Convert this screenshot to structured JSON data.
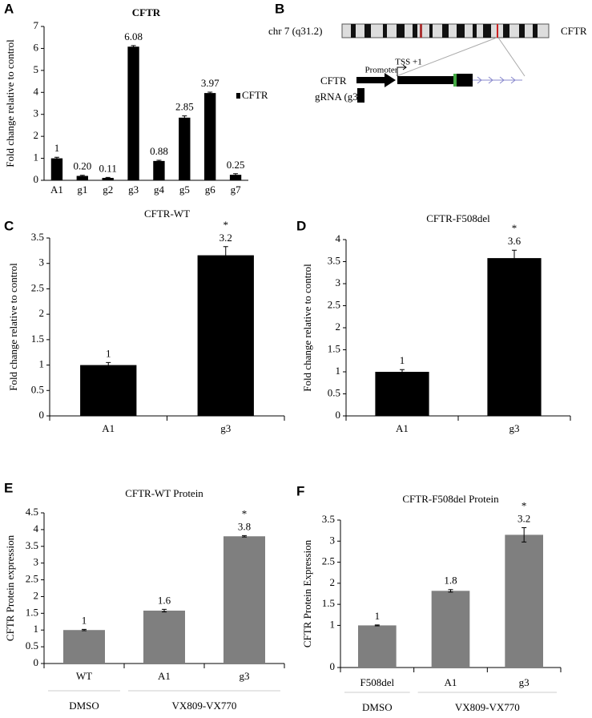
{
  "chart_data": [
    {
      "type": "bar",
      "panel": "A",
      "title": "CFTR",
      "ylabel": "Fold change relative to control",
      "categories": [
        "A1",
        "g1",
        "g2",
        "g3",
        "g4",
        "g5",
        "g6",
        "g7"
      ],
      "series": [
        {
          "name": "CFTR",
          "color": "#000000",
          "values": [
            1,
            0.2,
            0.11,
            6.08,
            0.88,
            2.85,
            3.97,
            0.25
          ],
          "value_labels": [
            "1",
            "0.20",
            "0.11",
            "6.08",
            "0.88",
            "2.85",
            "3.97",
            "0.25"
          ],
          "errors": [
            0.05,
            0.03,
            0.02,
            0.05,
            0.03,
            0.08,
            0.04,
            0.05
          ]
        }
      ],
      "ylim": [
        0,
        7
      ],
      "yticks": [
        0,
        1,
        2,
        3,
        4,
        5,
        6,
        7
      ],
      "legend": "right"
    },
    {
      "type": "bar",
      "panel": "C",
      "title": "CFTR-WT",
      "ylabel": "Fold change relative to control",
      "categories": [
        "A1",
        "g3"
      ],
      "series": [
        {
          "color": "#000000",
          "values": [
            1,
            3.16
          ],
          "value_labels": [
            "1",
            "3.2"
          ],
          "errors": [
            0.05,
            0.17
          ]
        }
      ],
      "annotations": [
        {
          "text": "*",
          "x": "g3"
        }
      ],
      "ylim": [
        0,
        3.5
      ],
      "yticks": [
        0,
        0.5,
        1,
        1.5,
        2,
        2.5,
        3,
        3.5
      ]
    },
    {
      "type": "bar",
      "panel": "D",
      "title": "CFTR-F508del",
      "ylabel": "Fold change relative to control",
      "categories": [
        "A1",
        "g3"
      ],
      "series": [
        {
          "color": "#000000",
          "values": [
            1,
            3.58
          ],
          "value_labels": [
            "1",
            "3.6"
          ],
          "errors": [
            0.05,
            0.18
          ]
        }
      ],
      "annotations": [
        {
          "text": "*",
          "x": "g3"
        }
      ],
      "ylim": [
        0,
        4
      ],
      "yticks": [
        0,
        0.5,
        1,
        1.5,
        2,
        2.5,
        3,
        3.5,
        4
      ]
    },
    {
      "type": "bar",
      "panel": "E",
      "title": "CFTR-WT Protein",
      "ylabel": "CFTR Protein expression",
      "categories": [
        "WT",
        "A1",
        "g3"
      ],
      "series": [
        {
          "color": "#7f7f7f",
          "values": [
            1,
            1.58,
            3.8
          ],
          "value_labels": [
            "1",
            "1.6",
            "3.8"
          ],
          "errors": [
            0.02,
            0.04,
            0.02
          ]
        }
      ],
      "annotations": [
        {
          "text": "*",
          "x": "g3"
        }
      ],
      "groups": [
        {
          "label": "DMSO",
          "categories": [
            "WT"
          ]
        },
        {
          "label": "VX809-VX770",
          "categories": [
            "A1",
            "g3"
          ]
        }
      ],
      "ylim": [
        0,
        4.5
      ],
      "yticks": [
        0,
        0.5,
        1,
        1.5,
        2,
        2.5,
        3,
        3.5,
        4,
        4.5
      ]
    },
    {
      "type": "bar",
      "panel": "F",
      "title": "CFTR-F508del Protein",
      "ylabel": "CFTR Protein Expression",
      "categories": [
        "F508del",
        "A1",
        "g3"
      ],
      "series": [
        {
          "color": "#7f7f7f",
          "values": [
            1,
            1.82,
            3.15
          ],
          "value_labels": [
            "1",
            "1.8",
            "3.2"
          ],
          "errors": [
            0.01,
            0.03,
            0.17
          ]
        }
      ],
      "annotations": [
        {
          "text": "*",
          "x": "g3"
        }
      ],
      "groups": [
        {
          "label": "DMSO",
          "categories": [
            "F508del"
          ]
        },
        {
          "label": "VX809-VX770",
          "categories": [
            "A1",
            "g3"
          ]
        }
      ],
      "ylim": [
        0,
        3.5
      ],
      "yticks": [
        0,
        1,
        1.5,
        2,
        2.5,
        3,
        3.5
      ]
    }
  ],
  "diagram": {
    "panel": "B",
    "chromosome": "chr 7 (q31.2)",
    "gene": "CFTR",
    "promoter": "Promoter",
    "tss": "TSS +1",
    "track_label": "CFTR",
    "grna": "gRNA (g3)"
  }
}
